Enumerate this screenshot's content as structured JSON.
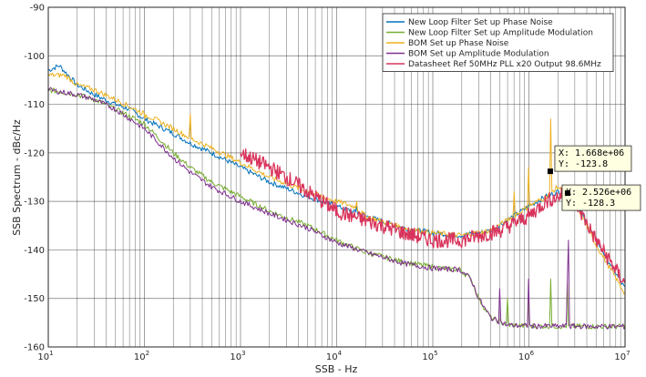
{
  "chart_data": {
    "type": "line",
    "xlabel": "SSB - Hz",
    "ylabel": "SSB Spectrum - dBc/Hz",
    "xscale": "log",
    "xlim": [
      10,
      10000000
    ],
    "ylim": [
      -160,
      -90
    ],
    "grid": true,
    "legend_position": "top-right",
    "x_ticks": [
      {
        "base": "10",
        "exp": "1",
        "value": 10
      },
      {
        "base": "10",
        "exp": "2",
        "value": 100
      },
      {
        "base": "10",
        "exp": "3",
        "value": 1000
      },
      {
        "base": "10",
        "exp": "4",
        "value": 10000
      },
      {
        "base": "10",
        "exp": "5",
        "value": 100000
      },
      {
        "base": "10",
        "exp": "6",
        "value": 1000000
      },
      {
        "base": "10",
        "exp": "7",
        "value": 10000000
      }
    ],
    "y_ticks": [
      "-90",
      "-100",
      "-110",
      "-120",
      "-130",
      "-140",
      "-150",
      "-160"
    ],
    "y_tick_values": [
      -90,
      -100,
      -110,
      -120,
      -130,
      -140,
      -150,
      -160
    ],
    "series": [
      {
        "name": "New Loop Filter Set up Phase Noise",
        "color": "#0072BD",
        "points": [
          [
            10,
            -103
          ],
          [
            13,
            -102
          ],
          [
            20,
            -106
          ],
          [
            30,
            -108
          ],
          [
            50,
            -110
          ],
          [
            70,
            -111
          ],
          [
            100,
            -113
          ],
          [
            200,
            -116
          ],
          [
            300,
            -118
          ],
          [
            500,
            -120
          ],
          [
            1000,
            -123
          ],
          [
            2000,
            -126
          ],
          [
            5000,
            -129
          ],
          [
            10000,
            -131
          ],
          [
            20000,
            -133
          ],
          [
            50000,
            -135.5
          ],
          [
            100000,
            -136.5
          ],
          [
            200000,
            -137
          ],
          [
            400000,
            -136
          ],
          [
            700000,
            -133
          ],
          [
            1000000,
            -131
          ],
          [
            1500000,
            -129
          ],
          [
            2000000,
            -128
          ],
          [
            2500000,
            -128.3
          ],
          [
            3000000,
            -130
          ],
          [
            5000000,
            -138
          ],
          [
            10000000,
            -148
          ]
        ],
        "spikes": [
          [
            50,
            -101
          ],
          [
            160,
            -108
          ],
          [
            16000,
            -131
          ]
        ]
      },
      {
        "name": "New Loop Filter Set up Amplitude Modulation",
        "color": "#77AC30",
        "points": [
          [
            10,
            -107
          ],
          [
            20,
            -108
          ],
          [
            30,
            -109
          ],
          [
            50,
            -111
          ],
          [
            100,
            -114
          ],
          [
            200,
            -120
          ],
          [
            300,
            -123
          ],
          [
            500,
            -126
          ],
          [
            1000,
            -129
          ],
          [
            2000,
            -132
          ],
          [
            5000,
            -135
          ],
          [
            10000,
            -138
          ],
          [
            20000,
            -140.5
          ],
          [
            50000,
            -142.5
          ],
          [
            100000,
            -143.5
          ],
          [
            150000,
            -144
          ],
          [
            190000,
            -144
          ],
          [
            250000,
            -146
          ],
          [
            300000,
            -150
          ],
          [
            400000,
            -154
          ],
          [
            600000,
            -155.5
          ],
          [
            1000000,
            -155.7
          ],
          [
            10000000,
            -155.8
          ]
        ],
        "spikes": [
          [
            600000,
            -150
          ],
          [
            1000000,
            -150
          ],
          [
            1700000,
            -146
          ],
          [
            2500000,
            -147
          ]
        ]
      },
      {
        "name": "BOM Set up Phase Noise",
        "color": "#EDB120",
        "points": [
          [
            10,
            -104
          ],
          [
            15,
            -104
          ],
          [
            20,
            -106
          ],
          [
            30,
            -107
          ],
          [
            50,
            -109
          ],
          [
            100,
            -112
          ],
          [
            200,
            -115
          ],
          [
            300,
            -117
          ],
          [
            500,
            -119
          ],
          [
            1000,
            -122
          ],
          [
            2000,
            -125
          ],
          [
            5000,
            -128
          ],
          [
            10000,
            -130
          ],
          [
            15000,
            -131
          ],
          [
            20000,
            -133
          ],
          [
            50000,
            -135.5
          ],
          [
            100000,
            -136.5
          ],
          [
            200000,
            -137
          ],
          [
            400000,
            -136
          ],
          [
            700000,
            -133
          ],
          [
            1000000,
            -131
          ],
          [
            1500000,
            -129
          ],
          [
            2000000,
            -127
          ],
          [
            3000000,
            -130
          ],
          [
            5000000,
            -139
          ],
          [
            10000000,
            -149
          ]
        ],
        "spikes": [
          [
            50,
            -100
          ],
          [
            100,
            -113
          ],
          [
            160,
            -107
          ],
          [
            300,
            -112
          ],
          [
            16000,
            -130
          ],
          [
            700000,
            -128
          ],
          [
            1000000,
            -123
          ],
          [
            1668000,
            -123.8
          ],
          [
            1700000,
            -113
          ],
          [
            2000000,
            -119
          ]
        ]
      },
      {
        "name": "BOM Set up Amplitude Modulation",
        "color": "#7E2F8E",
        "points": [
          [
            10,
            -107
          ],
          [
            20,
            -108
          ],
          [
            30,
            -109
          ],
          [
            50,
            -111
          ],
          [
            100,
            -115
          ],
          [
            200,
            -121
          ],
          [
            300,
            -124
          ],
          [
            500,
            -127
          ],
          [
            1000,
            -130
          ],
          [
            2000,
            -132.5
          ],
          [
            5000,
            -135.5
          ],
          [
            10000,
            -138.5
          ],
          [
            20000,
            -140.5
          ],
          [
            50000,
            -142.8
          ],
          [
            100000,
            -143.8
          ],
          [
            150000,
            -144
          ],
          [
            190000,
            -144
          ],
          [
            250000,
            -146
          ],
          [
            300000,
            -150
          ],
          [
            400000,
            -154
          ],
          [
            600000,
            -155.5
          ],
          [
            1000000,
            -155.7
          ],
          [
            10000000,
            -155.8
          ]
        ],
        "spikes": [
          [
            500000,
            -148
          ],
          [
            1000000,
            -146
          ],
          [
            1500000,
            -150
          ],
          [
            2500000,
            -146
          ],
          [
            2600000,
            -138
          ]
        ]
      },
      {
        "name": "Datasheet Ref 50MHz PLL x20 Output 98.6MHz",
        "color": "#D9345C",
        "points": [
          [
            1000,
            -120
          ],
          [
            2000,
            -123
          ],
          [
            3000,
            -125
          ],
          [
            5000,
            -128
          ],
          [
            10000,
            -132
          ],
          [
            20000,
            -134
          ],
          [
            30000,
            -135
          ],
          [
            50000,
            -136.5
          ],
          [
            100000,
            -138
          ],
          [
            200000,
            -138
          ],
          [
            500000,
            -136
          ],
          [
            1000000,
            -133
          ],
          [
            1500000,
            -130
          ],
          [
            2000000,
            -129
          ],
          [
            2526000,
            -128.3
          ],
          [
            3000000,
            -130
          ],
          [
            5000000,
            -138
          ],
          [
            10000000,
            -147
          ]
        ],
        "noise": 1.6
      }
    ],
    "data_tips": [
      {
        "x_label": "X: 1.668e+06",
        "y_label": "Y: -123.8",
        "x": 1668000,
        "y": -123.8
      },
      {
        "x_label": "X: 2.526e+06",
        "y_label": "Y: -128.3",
        "x": 2526000,
        "y": -128.3
      }
    ]
  }
}
